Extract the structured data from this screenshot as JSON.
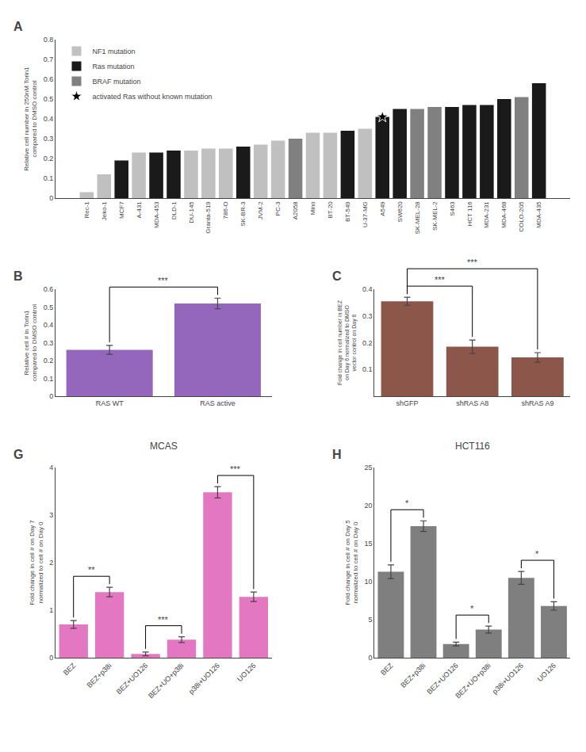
{
  "chart_data": [
    {
      "type": "bar",
      "ylabel": "Relative cell number in 250nM Torin1\ncompared to DMSO control",
      "categories": [
        "Rec-1",
        "Jeko-1",
        "MCF7",
        "A-431",
        "MDA-453",
        "DLD-1",
        "DU-145",
        "Granta-519",
        "786-O",
        "SK-BR-3",
        "JVM-2",
        "PC-3",
        "A2058",
        "Mino",
        "BT-20",
        "BT-549",
        "U-37-MG",
        "A549",
        "SW620",
        "SK-MEL-28",
        "SK-MEL-2",
        "S463",
        "HCT 116",
        "MDA-231",
        "MDA-468",
        "COLO-205",
        "MDA-435"
      ],
      "series": [
        {
          "name": "NF1 mutation",
          "color": "#c0c0c0",
          "values": [
            0.03,
            0.12,
            null,
            0.23,
            null,
            null,
            0.24,
            0.25,
            0.25,
            null,
            0.27,
            0.29,
            null,
            0.33,
            0.33,
            null,
            0.35,
            null,
            null,
            null,
            null,
            null,
            null,
            null,
            null,
            null,
            null
          ]
        },
        {
          "name": "Ras mutation",
          "color": "#1a1a1a",
          "values": [
            null,
            null,
            0.19,
            null,
            0.23,
            0.24,
            null,
            null,
            null,
            0.26,
            null,
            null,
            null,
            null,
            null,
            0.34,
            null,
            0.41,
            0.45,
            null,
            null,
            0.46,
            0.47,
            0.47,
            0.5,
            null,
            0.58
          ]
        },
        {
          "name": "BRAF mutation",
          "color": "#808080",
          "values": [
            null,
            null,
            null,
            null,
            null,
            null,
            null,
            null,
            null,
            null,
            null,
            null,
            0.3,
            null,
            null,
            null,
            null,
            null,
            null,
            0.45,
            0.46,
            null,
            null,
            null,
            null,
            0.51,
            null
          ]
        },
        {
          "name": "activated Ras without known mutation",
          "type": "scatter",
          "marker": "star",
          "color": "#000000",
          "values": [
            null,
            null,
            null,
            null,
            null,
            null,
            null,
            null,
            null,
            null,
            null,
            null,
            null,
            null,
            null,
            null,
            null,
            0.41,
            null,
            null,
            null,
            null,
            null,
            null,
            null,
            null,
            null
          ]
        }
      ],
      "ylim": [
        0,
        0.8
      ],
      "yticks": [
        0,
        0.1,
        0.2,
        0.3,
        0.4,
        0.5,
        0.6,
        0.7,
        0.8
      ],
      "legend": "upper left",
      "grid": false,
      "annotations": [
        {
          "text": "A"
        }
      ]
    },
    {
      "type": "bar",
      "ylabel": "Relative cell # in Torin1\ncompared to DMSO control",
      "categories": [
        "RAS WT",
        "RAS active"
      ],
      "values": [
        0.26,
        0.52
      ],
      "errors": [
        0.025,
        0.03
      ],
      "ylim": [
        0,
        0.6
      ],
      "yticks": [
        0,
        0.1,
        0.2,
        0.3,
        0.4,
        0.5,
        0.6
      ],
      "grid": false,
      "annotations": [
        {
          "text": "B"
        },
        {
          "text": "***",
          "categories": [
            "RAS WT",
            "RAS active"
          ]
        }
      ]
    },
    {
      "type": "bar",
      "ylabel": "Fold change in cell number in BEZ\non Day 6 normalized to DMSO\nvector control on Day 6",
      "categories": [
        "shGFP",
        "shRAS A8",
        "shRAS A9"
      ],
      "values": [
        0.355,
        0.185,
        0.145
      ],
      "errors": [
        0.015,
        0.025,
        0.018
      ],
      "ylim": [
        0,
        0.4
      ],
      "yticks": [
        0.1,
        0.2,
        0.3,
        0.4
      ],
      "grid": false,
      "annotations": [
        {
          "text": "C"
        },
        {
          "text": "***",
          "categories": [
            "shGFP",
            "shRAS A8"
          ]
        },
        {
          "text": "***",
          "categories": [
            "shGFP",
            "shRAS A9"
          ]
        }
      ]
    },
    {
      "type": "bar",
      "title": "MCAS",
      "ylabel": "Fold change in cell # on Day 7\nnormalized to cell # on Day 0",
      "categories": [
        "BEZ",
        "BEZ+p38i",
        "BEZ+UO126",
        "BEZ+UO+p38i",
        "p38i+UO126",
        "UO126"
      ],
      "values": [
        0.7,
        1.38,
        0.08,
        0.38,
        3.48,
        1.28
      ],
      "errors": [
        0.08,
        0.1,
        0.04,
        0.06,
        0.12,
        0.1
      ],
      "ylim": [
        0,
        4
      ],
      "yticks": [
        0,
        1,
        2,
        3,
        4
      ],
      "grid": false,
      "annotations": [
        {
          "text": "G"
        },
        {
          "text": "**",
          "categories": [
            "BEZ",
            "BEZ+p38i"
          ]
        },
        {
          "text": "***",
          "categories": [
            "BEZ+UO126",
            "BEZ+UO+p38i"
          ]
        },
        {
          "text": "***",
          "categories": [
            "p38i+UO126",
            "UO126"
          ]
        }
      ]
    },
    {
      "type": "bar",
      "title": "HCT116",
      "ylabel": "Fold change in cell # on Day 5\nnormalized to cell # on Day 0",
      "categories": [
        "BEZ",
        "BEZ+p38i",
        "BEZ+UO126",
        "BEZ+UO+p38i",
        "p38i+UO126",
        "UO126"
      ],
      "values": [
        11.3,
        17.3,
        1.8,
        3.7,
        10.5,
        6.8
      ],
      "errors": [
        0.9,
        0.7,
        0.25,
        0.45,
        0.85,
        0.55
      ],
      "ylim": [
        0,
        25
      ],
      "yticks": [
        0,
        5,
        10,
        15,
        20,
        25
      ],
      "grid": false,
      "annotations": [
        {
          "text": "H"
        },
        {
          "text": "*",
          "categories": [
            "BEZ",
            "BEZ+p38i"
          ]
        },
        {
          "text": "*",
          "categories": [
            "BEZ+UO126",
            "BEZ+UO+p38i"
          ]
        },
        {
          "text": "*",
          "categories": [
            "p38i+UO126",
            "UO126"
          ]
        }
      ]
    }
  ]
}
